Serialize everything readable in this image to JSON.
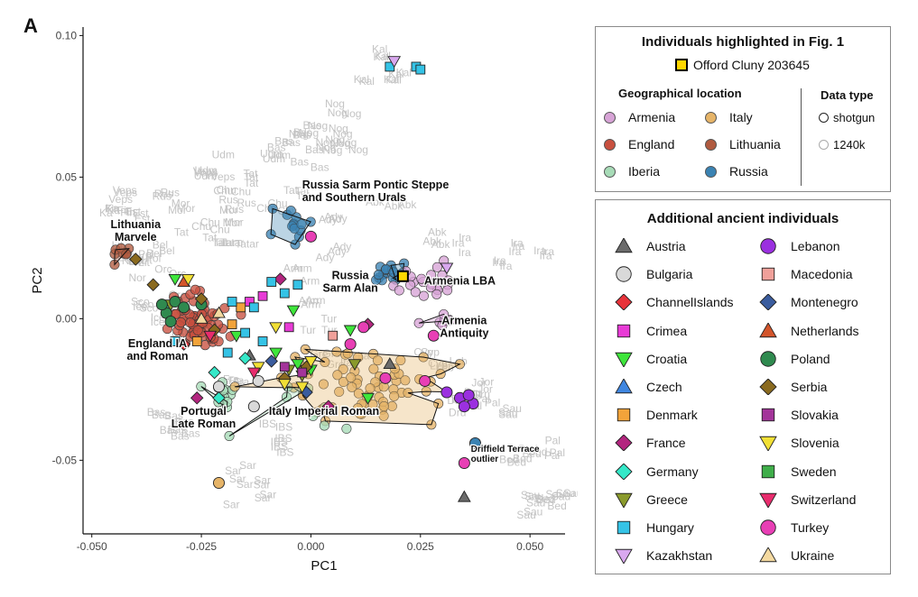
{
  "panel_label": "A",
  "chart_data": {
    "type": "scatter",
    "xlabel": "PC1",
    "ylabel": "PC2",
    "xlim": [
      -0.052,
      0.058
    ],
    "ylim": [
      -0.076,
      0.103
    ],
    "x_ticks": [
      -0.05,
      -0.025,
      0.0,
      0.025,
      0.05
    ],
    "x_tick_labels": [
      "-0.050",
      "-0.025",
      "0.000",
      "0.025",
      "0.050"
    ],
    "y_ticks": [
      -0.05,
      0.0,
      0.05,
      0.1
    ],
    "y_tick_labels": [
      "-0.05",
      "0.00",
      "0.05",
      "0.10"
    ],
    "grid": false,
    "modern_reference_labels": [
      {
        "text": "Kal",
        "x": 0.018,
        "y": 0.091
      },
      {
        "text": "Kal",
        "x": 0.018,
        "y": 0.085
      },
      {
        "text": "Kal",
        "x": 0.015,
        "y": 0.083
      },
      {
        "text": "Nog",
        "x": 0.007,
        "y": 0.071
      },
      {
        "text": "Nog",
        "x": 0.001,
        "y": 0.065
      },
      {
        "text": "Nog",
        "x": 0.007,
        "y": 0.063
      },
      {
        "text": "Nog",
        "x": 0.003,
        "y": 0.06
      },
      {
        "text": "Nog",
        "x": 0.008,
        "y": 0.062
      },
      {
        "text": "Udm",
        "x": -0.01,
        "y": 0.057
      },
      {
        "text": "Bas",
        "x": -0.003,
        "y": 0.063
      },
      {
        "text": "Bas",
        "x": 0.0,
        "y": 0.055
      },
      {
        "text": "Bas",
        "x": -0.006,
        "y": 0.059
      },
      {
        "text": "Udm",
        "x": -0.023,
        "y": 0.053
      },
      {
        "text": "Tat",
        "x": -0.012,
        "y": 0.047
      },
      {
        "text": "Tat",
        "x": -0.004,
        "y": 0.043
      },
      {
        "text": "Chu",
        "x": -0.018,
        "y": 0.044
      },
      {
        "text": "Veps",
        "x": -0.021,
        "y": 0.048
      },
      {
        "text": "Rus",
        "x": -0.017,
        "y": 0.041
      },
      {
        "text": "Mor",
        "x": -0.018,
        "y": 0.035
      },
      {
        "text": "Chu",
        "x": -0.008,
        "y": 0.037
      },
      {
        "text": "Veps",
        "x": -0.042,
        "y": 0.043
      },
      {
        "text": "Rus",
        "x": -0.033,
        "y": 0.041
      },
      {
        "text": "Mor",
        "x": -0.028,
        "y": 0.038
      },
      {
        "text": "Ka",
        "x": -0.045,
        "y": 0.039
      },
      {
        "text": "Fin",
        "x": -0.044,
        "y": 0.035
      },
      {
        "text": "Est",
        "x": -0.038,
        "y": 0.034
      },
      {
        "text": "Chu",
        "x": -0.022,
        "y": 0.031
      },
      {
        "text": "Tat",
        "x": -0.022,
        "y": 0.027
      },
      {
        "text": "Tatar",
        "x": -0.018,
        "y": 0.024
      },
      {
        "text": "Lit",
        "x": -0.043,
        "y": 0.022
      },
      {
        "text": "Lit",
        "x": -0.04,
        "y": 0.021
      },
      {
        "text": "Bel",
        "x": -0.034,
        "y": 0.025
      },
      {
        "text": "Pol",
        "x": -0.036,
        "y": 0.02
      },
      {
        "text": "Orc",
        "x": -0.03,
        "y": 0.015
      },
      {
        "text": "Nor",
        "x": -0.039,
        "y": 0.018
      },
      {
        "text": "Ady",
        "x": 0.006,
        "y": 0.034
      },
      {
        "text": "Ady",
        "x": 0.005,
        "y": 0.024
      },
      {
        "text": "Abk",
        "x": 0.016,
        "y": 0.039
      },
      {
        "text": "Abk",
        "x": 0.026,
        "y": 0.024
      },
      {
        "text": "Ira",
        "x": 0.038,
        "y": 0.026
      },
      {
        "text": "Ira",
        "x": 0.043,
        "y": 0.019
      },
      {
        "text": "Ira",
        "x": 0.047,
        "y": 0.023
      },
      {
        "text": "Ira",
        "x": 0.053,
        "y": 0.022
      },
      {
        "text": "Arm",
        "x": 0.0,
        "y": 0.005
      },
      {
        "text": "Arm",
        "x": -0.002,
        "y": 0.015
      },
      {
        "text": "Tur",
        "x": 0.002,
        "y": -0.002
      },
      {
        "text": "Ice",
        "x": -0.036,
        "y": 0.0
      },
      {
        "text": "Sco",
        "x": -0.038,
        "y": 0.004
      },
      {
        "text": "Eng",
        "x": -0.03,
        "y": -0.005
      },
      {
        "text": "Fra",
        "x": -0.018,
        "y": -0.024
      },
      {
        "text": "Gre",
        "x": 0.004,
        "y": -0.015
      },
      {
        "text": "Ita",
        "x": 0.01,
        "y": -0.016
      },
      {
        "text": "Cyp",
        "x": 0.026,
        "y": -0.015
      },
      {
        "text": "Jor",
        "x": 0.038,
        "y": -0.025
      },
      {
        "text": "Leb",
        "x": 0.031,
        "y": -0.018
      },
      {
        "text": "Pal",
        "x": 0.04,
        "y": -0.031
      },
      {
        "text": "Sau",
        "x": 0.046,
        "y": -0.034
      },
      {
        "text": "Bed",
        "x": 0.051,
        "y": -0.048
      },
      {
        "text": "Bed",
        "x": 0.047,
        "y": -0.053
      },
      {
        "text": "Pal",
        "x": 0.055,
        "y": -0.048
      },
      {
        "text": "Sau",
        "x": 0.053,
        "y": -0.062
      },
      {
        "text": "Sau",
        "x": 0.057,
        "y": -0.064
      },
      {
        "text": "Bed",
        "x": 0.054,
        "y": -0.068
      },
      {
        "text": "Sau",
        "x": 0.051,
        "y": -0.069
      },
      {
        "text": "Bas",
        "x": -0.033,
        "y": -0.036
      },
      {
        "text": "Bas",
        "x": -0.029,
        "y": -0.039
      },
      {
        "text": "Bas",
        "x": -0.031,
        "y": -0.041
      },
      {
        "text": "Sar",
        "x": -0.017,
        "y": -0.055
      },
      {
        "text": "Sar",
        "x": -0.012,
        "y": -0.06
      },
      {
        "text": "Sar",
        "x": -0.013,
        "y": -0.066
      },
      {
        "text": "IBS",
        "x": -0.007,
        "y": -0.04
      },
      {
        "text": "IBS",
        "x": -0.007,
        "y": -0.046
      },
      {
        "text": "Dru",
        "x": 0.033,
        "y": -0.034
      },
      {
        "text": "Dru",
        "x": 0.037,
        "y": -0.028
      }
    ],
    "group_annotations": [
      {
        "text": "Russia Sarm Pontic Steppe\nand Southern Urals",
        "x": -0.002,
        "y": 0.046,
        "anchor": "start"
      },
      {
        "text": "Lithuania\nMarvele",
        "x": -0.04,
        "y": 0.032,
        "anchor": "middle"
      },
      {
        "text": "Russia\nSarm Alan",
        "x": 0.009,
        "y": 0.014,
        "anchor": "middle"
      },
      {
        "text": "Armenia LBA",
        "x": 0.034,
        "y": 0.012,
        "anchor": "middle"
      },
      {
        "text": "Armenia\nAntiquity",
        "x": 0.035,
        "y": -0.002,
        "anchor": "middle"
      },
      {
        "text": "England IA\nand Roman",
        "x": -0.035,
        "y": -0.01,
        "anchor": "middle"
      },
      {
        "text": "Portugal\nLate Roman",
        "x": -0.0245,
        "y": -0.034,
        "anchor": "middle"
      },
      {
        "text": "Italy Imperial Roman",
        "x": 0.003,
        "y": -0.034,
        "anchor": "middle"
      },
      {
        "text": "Driffield Terrace\noutlier",
        "x": 0.0365,
        "y": -0.047,
        "anchor": "start",
        "small": true
      }
    ],
    "highlighted_individual": {
      "name": "Offord Cluny 203645",
      "x": 0.021,
      "y": 0.015
    },
    "region_clusters": [
      {
        "name": "Russia",
        "color": "#3b83b3",
        "cx": -0.004,
        "cy": 0.033,
        "sx": 0.003,
        "sy": 0.003,
        "n": 14
      },
      {
        "name": "Lithuania",
        "color": "#b05a3f",
        "cx": -0.043,
        "cy": 0.023,
        "sx": 0.0012,
        "sy": 0.002,
        "n": 8
      },
      {
        "name": "Russia",
        "color": "#3b83b3",
        "cx": 0.016,
        "cy": 0.016,
        "sx": 0.003,
        "sy": 0.002,
        "n": 16
      },
      {
        "name": "Armenia",
        "color": "#d7a3d6",
        "cx": 0.026,
        "cy": 0.013,
        "sx": 0.004,
        "sy": 0.003,
        "n": 22
      },
      {
        "name": "Armenia",
        "color": "#d7a3d6",
        "cx": 0.03,
        "cy": -0.002,
        "sx": 0.002,
        "sy": 0.002,
        "n": 8
      },
      {
        "name": "England",
        "color": "#c8503f",
        "cx": -0.026,
        "cy": 0.0,
        "sx": 0.0035,
        "sy": 0.0045,
        "n": 65
      },
      {
        "name": "Iberia",
        "color": "#a7dbb7",
        "cx": -0.02,
        "cy": -0.026,
        "sx": 0.002,
        "sy": 0.0022,
        "n": 12
      },
      {
        "name": "Italy",
        "color": "#e6b468",
        "cx": 0.012,
        "cy": -0.023,
        "sx": 0.009,
        "sy": 0.006,
        "n": 70
      },
      {
        "name": "Iberia",
        "color": "#a7dbb7",
        "cx": 0.002,
        "cy": -0.035,
        "sx": 0.007,
        "sy": 0.006,
        "n": 8
      }
    ],
    "ancient_points": [
      {
        "g": "Austria",
        "x": -0.014,
        "y": -0.013
      },
      {
        "g": "Austria",
        "x": 0.018,
        "y": -0.016
      },
      {
        "g": "Austria",
        "x": 0.035,
        "y": -0.063
      },
      {
        "g": "Bulgaria",
        "x": -0.021,
        "y": -0.024
      },
      {
        "g": "Bulgaria",
        "x": -0.012,
        "y": -0.022
      },
      {
        "g": "Bulgaria",
        "x": -0.013,
        "y": -0.031
      },
      {
        "g": "ChannelIslands",
        "x": -0.029,
        "y": -0.009
      },
      {
        "g": "Crimea",
        "x": -0.011,
        "y": 0.008
      },
      {
        "g": "Crimea",
        "x": -0.005,
        "y": -0.003
      },
      {
        "g": "Crimea",
        "x": -0.014,
        "y": 0.006
      },
      {
        "g": "Croatia",
        "x": -0.031,
        "y": 0.014
      },
      {
        "g": "Croatia",
        "x": -0.017,
        "y": -0.006
      },
      {
        "g": "Croatia",
        "x": -0.008,
        "y": -0.012
      },
      {
        "g": "Croatia",
        "x": -0.003,
        "y": -0.016
      },
      {
        "g": "Croatia",
        "x": 0.0,
        "y": -0.018
      },
      {
        "g": "Croatia",
        "x": 0.009,
        "y": -0.004
      },
      {
        "g": "Croatia",
        "x": 0.013,
        "y": -0.028
      },
      {
        "g": "Croatia",
        "x": -0.004,
        "y": 0.003
      },
      {
        "g": "Denmark",
        "x": -0.026,
        "y": -0.008
      },
      {
        "g": "Denmark",
        "x": -0.018,
        "y": -0.002
      },
      {
        "g": "Denmark",
        "x": -0.016,
        "y": 0.004
      },
      {
        "g": "France",
        "x": -0.007,
        "y": 0.014
      },
      {
        "g": "France",
        "x": -0.026,
        "y": -0.028
      },
      {
        "g": "France",
        "x": 0.004,
        "y": -0.031
      },
      {
        "g": "France",
        "x": 0.013,
        "y": -0.002
      },
      {
        "g": "Germany",
        "x": -0.033,
        "y": 0.004
      },
      {
        "g": "Germany",
        "x": -0.022,
        "y": -0.019
      },
      {
        "g": "Germany",
        "x": -0.015,
        "y": -0.014
      },
      {
        "g": "Germany",
        "x": -0.021,
        "y": -0.028
      },
      {
        "g": "Greece",
        "x": -0.032,
        "y": 0.005
      },
      {
        "g": "Greece",
        "x": -0.005,
        "y": -0.018
      },
      {
        "g": "Greece",
        "x": -0.002,
        "y": -0.02
      },
      {
        "g": "Greece",
        "x": 0.01,
        "y": -0.016
      },
      {
        "g": "Hungary",
        "x": -0.018,
        "y": 0.006
      },
      {
        "g": "Hungary",
        "x": -0.013,
        "y": 0.004
      },
      {
        "g": "Hungary",
        "x": -0.009,
        "y": 0.013
      },
      {
        "g": "Hungary",
        "x": -0.006,
        "y": 0.009
      },
      {
        "g": "Hungary",
        "x": -0.015,
        "y": -0.005
      },
      {
        "g": "Hungary",
        "x": -0.011,
        "y": -0.008
      },
      {
        "g": "Hungary",
        "x": -0.031,
        "y": -0.008
      },
      {
        "g": "Hungary",
        "x": 0.018,
        "y": 0.089
      },
      {
        "g": "Hungary",
        "x": 0.024,
        "y": 0.089
      },
      {
        "g": "Hungary",
        "x": 0.025,
        "y": 0.088
      },
      {
        "g": "Hungary",
        "x": -0.003,
        "y": 0.012
      },
      {
        "g": "Hungary",
        "x": -0.019,
        "y": -0.012
      },
      {
        "g": "Kazakhstan",
        "x": 0.019,
        "y": 0.091
      },
      {
        "g": "Kazakhstan",
        "x": 0.031,
        "y": 0.018
      },
      {
        "g": "Lebanon",
        "x": 0.031,
        "y": -0.026
      },
      {
        "g": "Lebanon",
        "x": 0.034,
        "y": -0.028
      },
      {
        "g": "Lebanon",
        "x": 0.037,
        "y": -0.03
      },
      {
        "g": "Lebanon",
        "x": 0.035,
        "y": -0.031
      },
      {
        "g": "Lebanon",
        "x": 0.036,
        "y": -0.027
      },
      {
        "g": "Macedonia",
        "x": 0.005,
        "y": -0.006
      },
      {
        "g": "Montenegro",
        "x": -0.009,
        "y": -0.015
      },
      {
        "g": "Montenegro",
        "x": -0.001,
        "y": -0.026
      },
      {
        "g": "Netherlands",
        "x": -0.029,
        "y": 0.013
      },
      {
        "g": "Poland",
        "x": -0.033,
        "y": 0.002
      },
      {
        "g": "Poland",
        "x": -0.034,
        "y": 0.005
      },
      {
        "g": "Poland",
        "x": -0.031,
        "y": 0.006
      },
      {
        "g": "Poland",
        "x": -0.029,
        "y": 0.004
      },
      {
        "g": "Poland",
        "x": -0.032,
        "y": -0.001
      },
      {
        "g": "Poland",
        "x": -0.025,
        "y": 0.005
      },
      {
        "g": "Serbia",
        "x": -0.036,
        "y": 0.012
      },
      {
        "g": "Serbia",
        "x": -0.04,
        "y": 0.021
      },
      {
        "g": "Serbia",
        "x": -0.025,
        "y": 0.007
      },
      {
        "g": "Serbia",
        "x": -0.022,
        "y": -0.004
      },
      {
        "g": "Serbia",
        "x": -0.006,
        "y": -0.021
      },
      {
        "g": "Serbia",
        "x": -0.001,
        "y": -0.017
      },
      {
        "g": "Slovakia",
        "x": -0.006,
        "y": -0.017
      },
      {
        "g": "Slovakia",
        "x": -0.002,
        "y": -0.019
      },
      {
        "g": "Slovenia",
        "x": -0.028,
        "y": 0.014
      },
      {
        "g": "Slovenia",
        "x": -0.012,
        "y": -0.017
      },
      {
        "g": "Slovenia",
        "x": -0.006,
        "y": -0.023
      },
      {
        "g": "Slovenia",
        "x": -0.002,
        "y": -0.024
      },
      {
        "g": "Slovenia",
        "x": -0.008,
        "y": -0.003
      },
      {
        "g": "Slovenia",
        "x": 0.0,
        "y": -0.015
      },
      {
        "g": "Switzerland",
        "x": -0.023,
        "y": -0.006
      },
      {
        "g": "Switzerland",
        "x": -0.013,
        "y": -0.019
      },
      {
        "g": "Turkey",
        "x": 0.0,
        "y": 0.029
      },
      {
        "g": "Turkey",
        "x": 0.009,
        "y": -0.009
      },
      {
        "g": "Turkey",
        "x": 0.012,
        "y": -0.003
      },
      {
        "g": "Turkey",
        "x": 0.026,
        "y": -0.022
      },
      {
        "g": "Turkey",
        "x": 0.017,
        "y": -0.021
      },
      {
        "g": "Turkey",
        "x": 0.035,
        "y": -0.051
      },
      {
        "g": "Turkey",
        "x": 0.028,
        "y": -0.006
      },
      {
        "g": "Ukraine",
        "x": -0.025,
        "y": 0.0
      },
      {
        "g": "Ukraine",
        "x": -0.021,
        "y": 0.002
      },
      {
        "g": "Russia",
        "x": 0.0375,
        "y": -0.044
      },
      {
        "g": "Italy",
        "x": -0.021,
        "y": -0.058
      }
    ]
  },
  "legend_highlight": {
    "title": "Individuals highlighted in Fig. 1",
    "highlight_label": "Offord Cluny 203645",
    "geo_title": "Geographical location",
    "geo_items": [
      {
        "label": "Armenia",
        "color": "#d7a3d6"
      },
      {
        "label": "England",
        "color": "#c8503f"
      },
      {
        "label": "Iberia",
        "color": "#a7dbb7"
      },
      {
        "label": "Italy",
        "color": "#e6b468"
      },
      {
        "label": "Lithuania",
        "color": "#b05a3f"
      },
      {
        "label": "Russia",
        "color": "#3b83b3"
      }
    ],
    "datatype_title": "Data type",
    "datatype_items": [
      "shotgun",
      "1240k"
    ]
  },
  "legend_ancient": {
    "title": "Additional ancient individuals",
    "items": [
      {
        "label": "Austria",
        "shape": "triangle",
        "color": "#6b6b6b"
      },
      {
        "label": "Bulgaria",
        "shape": "circle",
        "color": "#d9d9d9"
      },
      {
        "label": "ChannelIslands",
        "shape": "diamond",
        "color": "#e8333a"
      },
      {
        "label": "Crimea",
        "shape": "square",
        "color": "#e83bd6"
      },
      {
        "label": "Croatia",
        "shape": "triangle-down",
        "color": "#3ee63b"
      },
      {
        "label": "Czech",
        "shape": "triangle",
        "color": "#3f86e0"
      },
      {
        "label": "Denmark",
        "shape": "square",
        "color": "#f2a33a"
      },
      {
        "label": "France",
        "shape": "diamond",
        "color": "#b3257f"
      },
      {
        "label": "Germany",
        "shape": "diamond",
        "color": "#34e8c8"
      },
      {
        "label": "Greece",
        "shape": "triangle-down",
        "color": "#8a9a2c"
      },
      {
        "label": "Hungary",
        "shape": "square",
        "color": "#35c3e6"
      },
      {
        "label": "Kazakhstan",
        "shape": "triangle-down",
        "color": "#d9a8ef"
      },
      {
        "label": "Lebanon",
        "shape": "circle",
        "color": "#9b30e0"
      },
      {
        "label": "Macedonia",
        "shape": "square",
        "color": "#f0a09a"
      },
      {
        "label": "Montenegro",
        "shape": "diamond",
        "color": "#3a5c9e"
      },
      {
        "label": "Netherlands",
        "shape": "triangle",
        "color": "#d3552b"
      },
      {
        "label": "Poland",
        "shape": "circle",
        "color": "#2f8a4f"
      },
      {
        "label": "Serbia",
        "shape": "diamond",
        "color": "#8a6a1f"
      },
      {
        "label": "Slovakia",
        "shape": "square",
        "color": "#a3349a"
      },
      {
        "label": "Slovenia",
        "shape": "triangle-down",
        "color": "#f2e035"
      },
      {
        "label": "Sweden",
        "shape": "square",
        "color": "#3fae4a"
      },
      {
        "label": "Switzerland",
        "shape": "triangle-down",
        "color": "#e82c6d"
      },
      {
        "label": "Turkey",
        "shape": "circle",
        "color": "#e83fb5"
      },
      {
        "label": "Ukraine",
        "shape": "triangle",
        "color": "#f4d9a0"
      }
    ]
  }
}
